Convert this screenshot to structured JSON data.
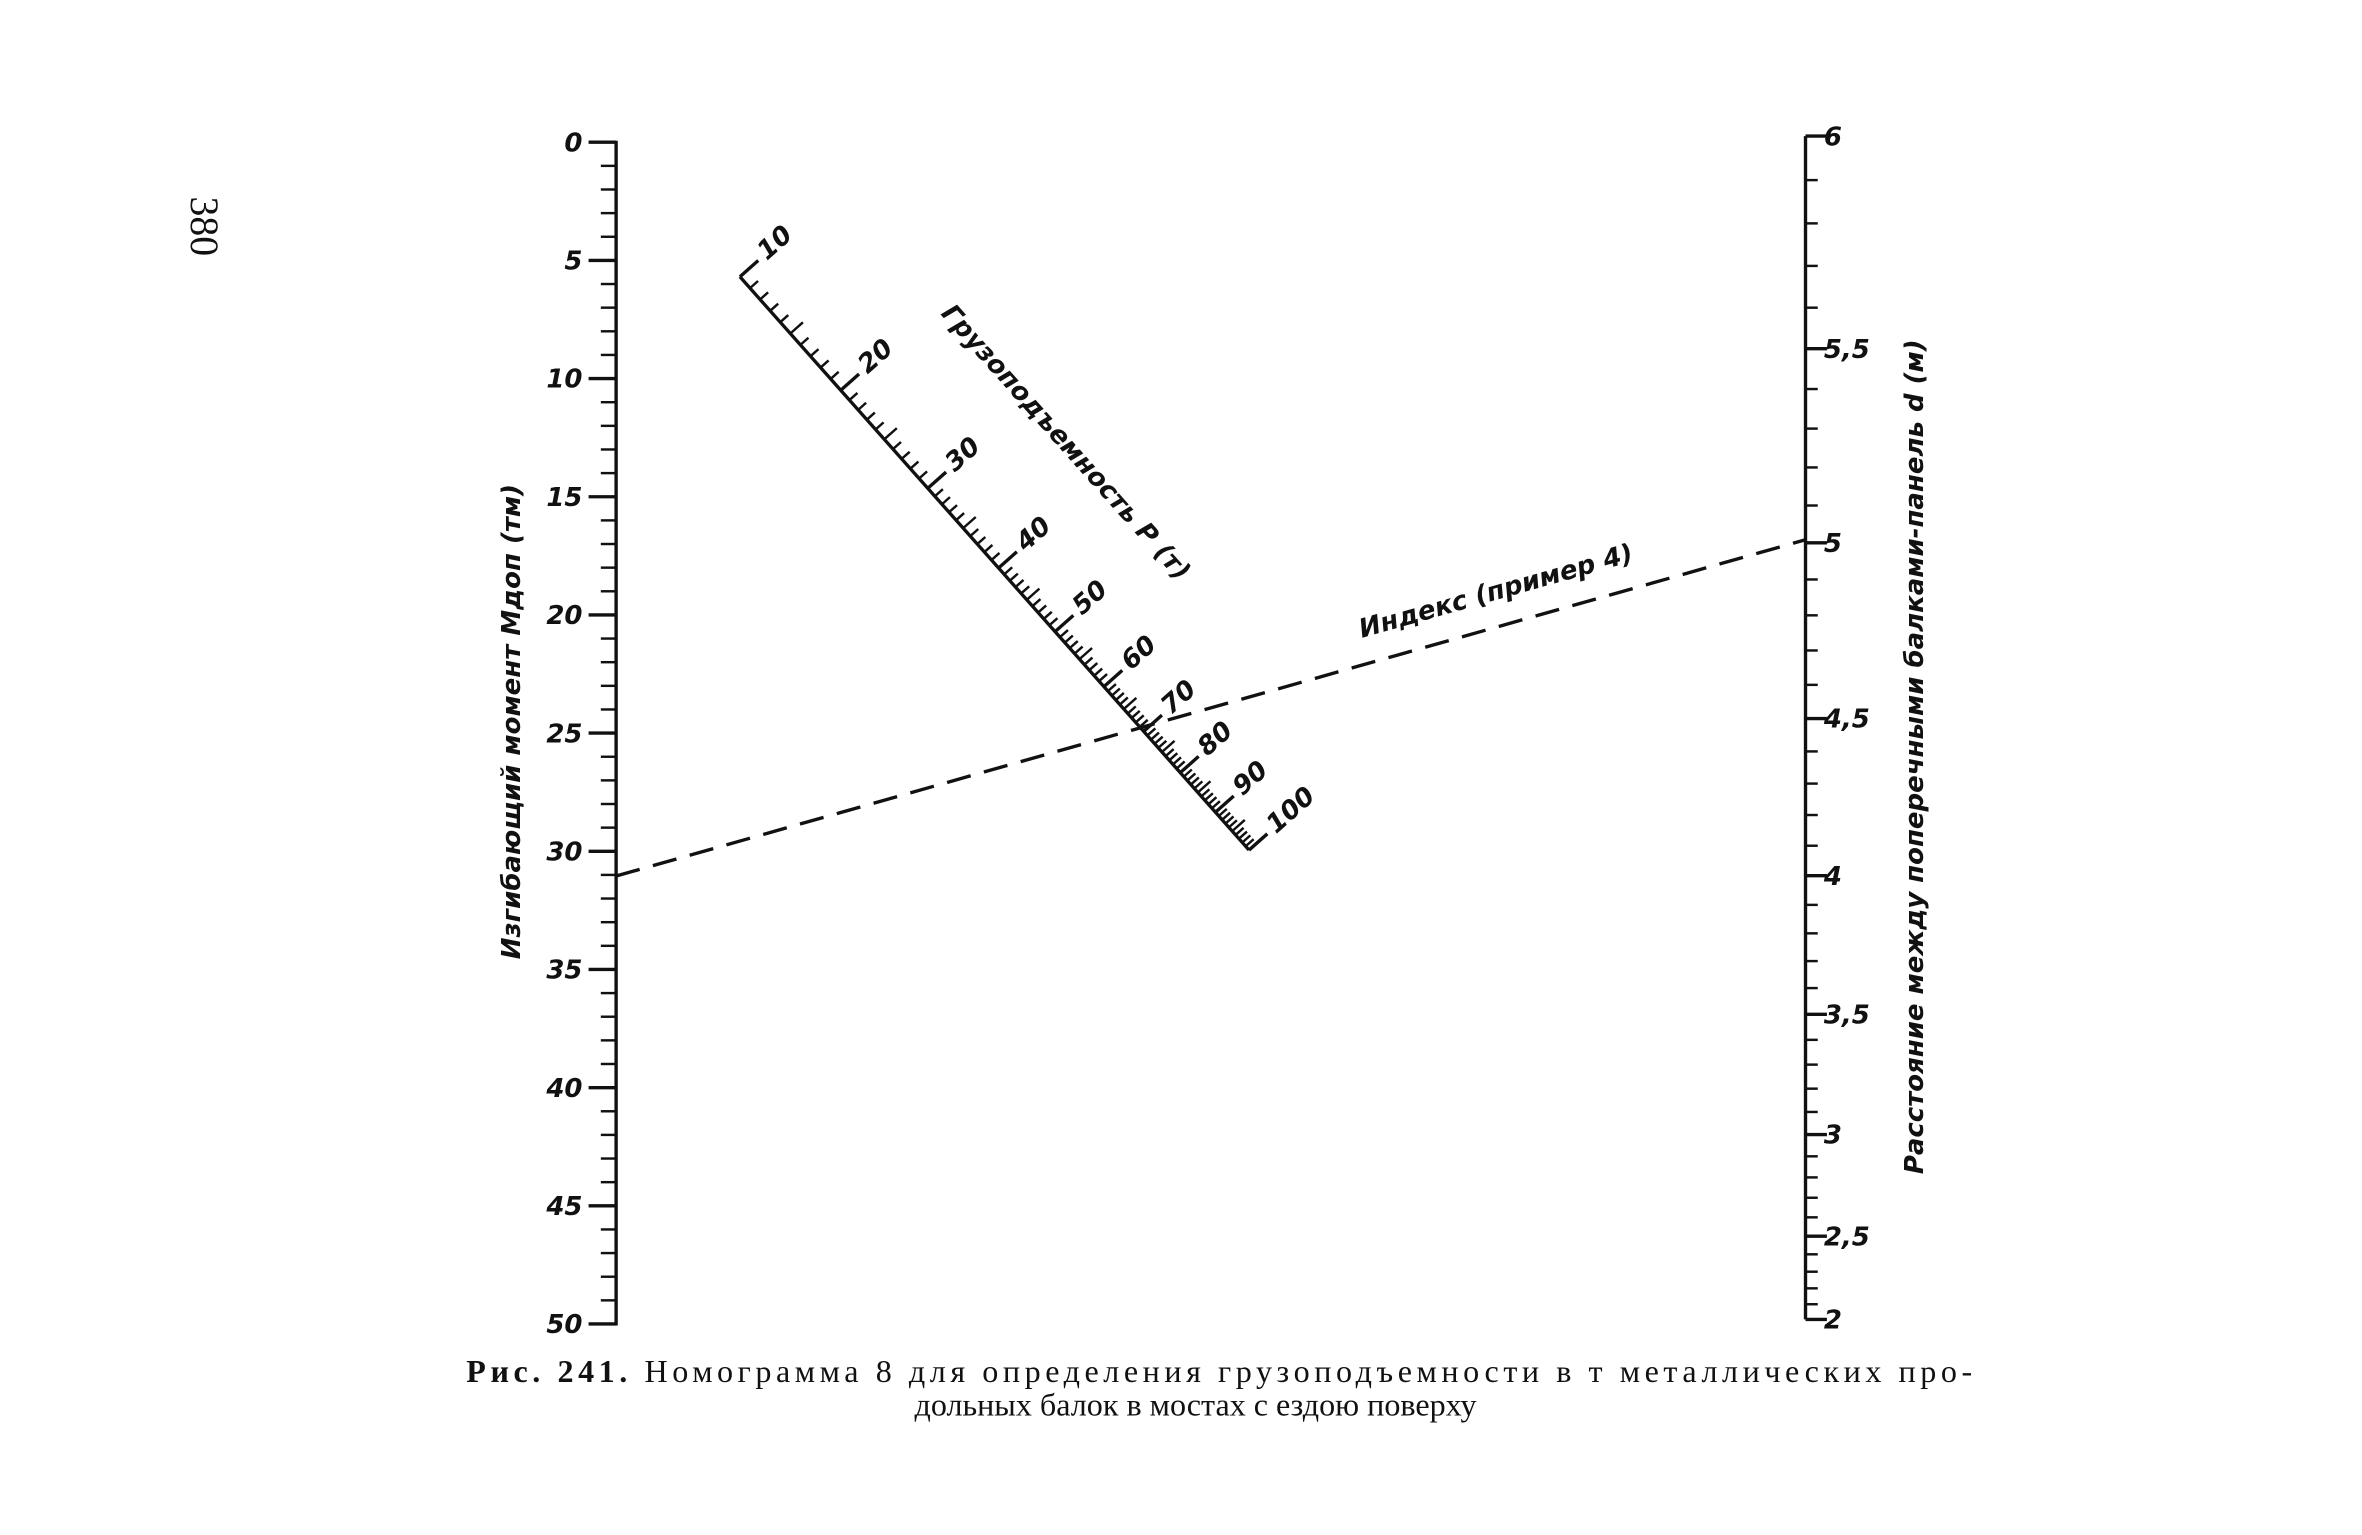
{
  "page_number": "380",
  "left_scale": {
    "label": "Изгибающий момент Mдоп (тм)",
    "ticks": [
      0,
      5,
      10,
      15,
      20,
      25,
      30,
      35,
      40,
      45,
      50
    ]
  },
  "middle_scale": {
    "label": "Грузоподъемность P (т)",
    "ticks": [
      10,
      20,
      30,
      40,
      50,
      60,
      70,
      80,
      90,
      100
    ]
  },
  "right_scale": {
    "label": "Расстояние между поперечными балками-панель d (м)",
    "ticks": [
      "6",
      "5,5",
      "5",
      "4,5",
      "4",
      "3,5",
      "3",
      "2,5",
      "2"
    ]
  },
  "index_label": "Индекс (пример 4)",
  "caption": {
    "figure": "Рис. 241.",
    "line1": "Номограмма 8 для определения  грузоподъемности в т металлических про-",
    "line2": "дольных балок в мостах с ездою поверху"
  }
}
